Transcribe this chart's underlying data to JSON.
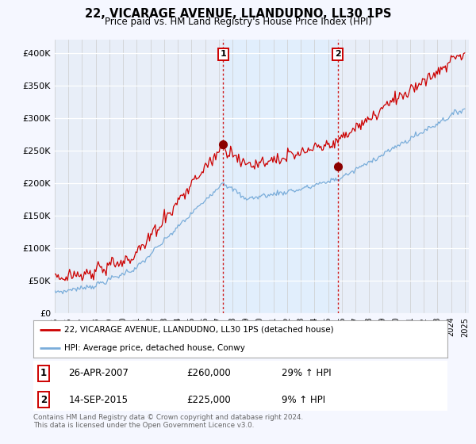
{
  "title": "22, VICARAGE AVENUE, LLANDUDNO, LL30 1PS",
  "subtitle": "Price paid vs. HM Land Registry's House Price Index (HPI)",
  "ylabel_ticks": [
    "£0",
    "£50K",
    "£100K",
    "£150K",
    "£200K",
    "£250K",
    "£300K",
    "£350K",
    "£400K"
  ],
  "ytick_values": [
    0,
    50000,
    100000,
    150000,
    200000,
    250000,
    300000,
    350000,
    400000
  ],
  "ylim": [
    0,
    420000
  ],
  "xlim_start": 1995.0,
  "xlim_end": 2025.3,
  "red_color": "#cc0000",
  "blue_color": "#7aadda",
  "blue_fill_color": "#ddeeff",
  "marker1_x": 2007.32,
  "marker1_y": 260000,
  "marker2_x": 2015.71,
  "marker2_y": 225000,
  "annotation1": [
    "1",
    "26-APR-2007",
    "£260,000",
    "29% ↑ HPI"
  ],
  "annotation2": [
    "2",
    "14-SEP-2015",
    "£225,000",
    "9% ↑ HPI"
  ],
  "legend_red": "22, VICARAGE AVENUE, LLANDUDNO, LL30 1PS (detached house)",
  "legend_blue": "HPI: Average price, detached house, Conwy",
  "footer": "Contains HM Land Registry data © Crown copyright and database right 2024.\nThis data is licensed under the Open Government Licence v3.0.",
  "background_color": "#f5f7ff",
  "plot_bg_color": "#e8eef8"
}
